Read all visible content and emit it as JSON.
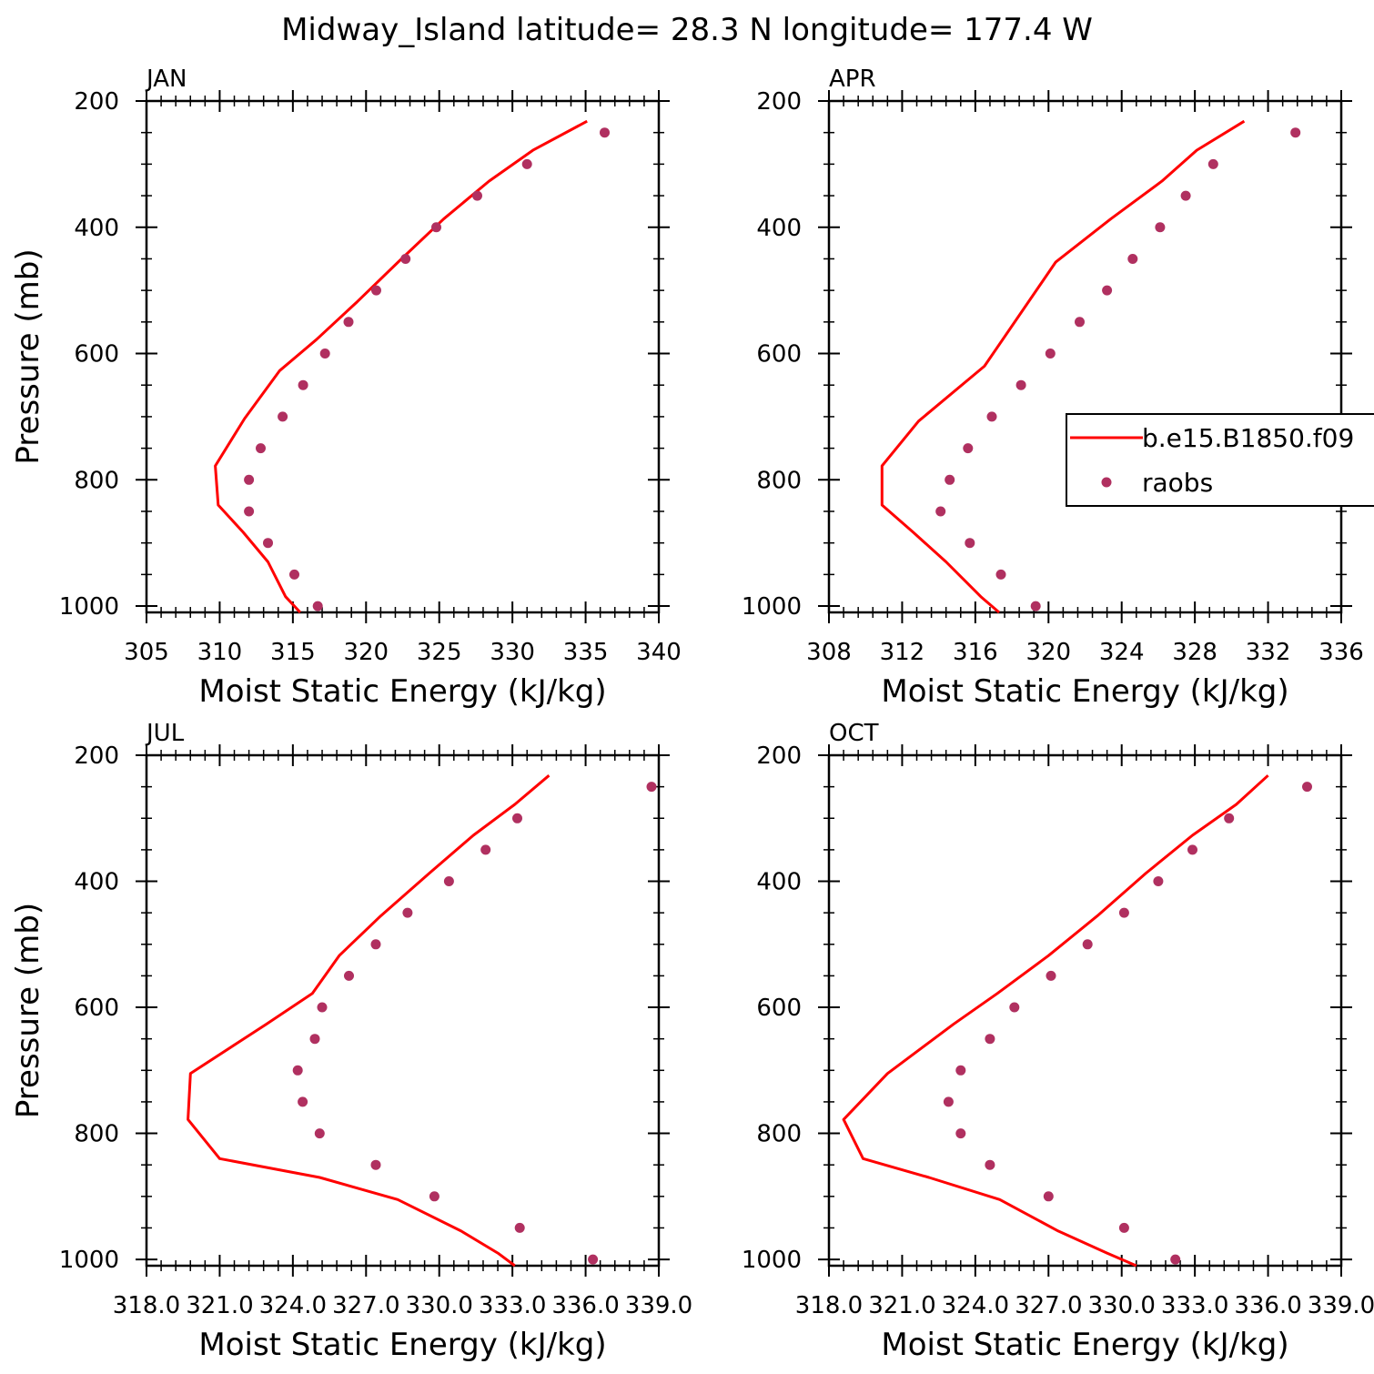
{
  "figure": {
    "title": "Midway_Island  latitude= 28.3 N longitude= 177.4 W"
  },
  "legend": {
    "model_label": "b.e15.B1850.f09",
    "obs_label": "raobs"
  },
  "colors": {
    "model_line": "#ff0000",
    "obs_marker": "#b03060"
  },
  "chart_data": [
    {
      "type": "line",
      "panel": "JAN",
      "xlabel": "Moist Static Energy (kJ/kg)",
      "ylabel": "Pressure (mb)",
      "xlim": [
        305,
        340
      ],
      "ylim": [
        1010,
        200
      ],
      "x_ticks": [
        305,
        310,
        315,
        320,
        325,
        330,
        335,
        340
      ],
      "x_tick_labels": [
        "305",
        "310",
        "315",
        "320",
        "325",
        "330",
        "335",
        "340"
      ],
      "y_ticks": [
        200,
        400,
        600,
        800,
        1000
      ],
      "y_tick_labels": [
        "200",
        "400",
        "600",
        "800",
        "1000"
      ],
      "series": [
        {
          "name": "b.e15.B1850.f09",
          "style": "line",
          "x": [
            335.1,
            331.4,
            328.4,
            325.3,
            322.2,
            319.4,
            316.6,
            314.1,
            311.7,
            309.7,
            309.9,
            311.6,
            313.3,
            314.5,
            315.5
          ],
          "y": [
            232,
            278,
            327,
            387,
            455,
            518,
            578,
            627,
            703,
            778,
            840,
            883,
            930,
            985,
            1010
          ]
        },
        {
          "name": "raobs",
          "style": "markers",
          "x": [
            336.3,
            331.0,
            327.6,
            324.8,
            322.7,
            320.7,
            318.8,
            317.2,
            315.7,
            314.3,
            312.8,
            312.0,
            312.0,
            313.3,
            315.1,
            316.7
          ],
          "y": [
            250,
            300,
            350,
            400,
            450,
            500,
            550,
            600,
            650,
            700,
            750,
            800,
            850,
            900,
            950,
            1000
          ]
        }
      ]
    },
    {
      "type": "line",
      "panel": "APR",
      "xlabel": "Moist Static Energy (kJ/kg)",
      "ylabel": "",
      "xlim": [
        308,
        336
      ],
      "ylim": [
        1010,
        200
      ],
      "x_ticks": [
        308,
        312,
        316,
        320,
        324,
        328,
        332,
        336
      ],
      "x_tick_labels": [
        "308",
        "312",
        "316",
        "320",
        "324",
        "328",
        "332",
        "336"
      ],
      "y_ticks": [
        200,
        400,
        600,
        800,
        1000
      ],
      "y_tick_labels": [
        "200",
        "400",
        "600",
        "800",
        "1000"
      ],
      "series": [
        {
          "name": "b.e15.B1850.f09",
          "style": "line",
          "x": [
            330.7,
            328.1,
            326.2,
            323.4,
            320.4,
            316.5,
            312.9,
            310.9,
            310.9,
            312.6,
            314.4,
            316.3,
            317.3
          ],
          "y": [
            232,
            278,
            327,
            387,
            455,
            620,
            707,
            778,
            840,
            883,
            930,
            985,
            1010
          ]
        },
        {
          "name": "raobs",
          "style": "markers",
          "x": [
            333.5,
            329.0,
            327.5,
            326.1,
            324.6,
            323.2,
            321.7,
            320.1,
            318.5,
            316.9,
            315.6,
            314.6,
            314.1,
            315.7,
            317.4,
            319.3
          ],
          "y": [
            250,
            300,
            350,
            400,
            450,
            500,
            550,
            600,
            650,
            700,
            750,
            800,
            850,
            900,
            950,
            1000
          ]
        }
      ]
    },
    {
      "type": "line",
      "panel": "JUL",
      "xlabel": "Moist Static Energy (kJ/kg)",
      "ylabel": "Pressure (mb)",
      "xlim": [
        318,
        339
      ],
      "ylim": [
        1010,
        200
      ],
      "x_ticks": [
        318,
        321,
        324,
        327,
        330,
        333,
        336,
        339
      ],
      "x_tick_labels": [
        "318.0",
        "321.0",
        "324.0",
        "327.0",
        "330.0",
        "333.0",
        "336.0",
        "339.0"
      ],
      "y_ticks": [
        200,
        400,
        600,
        800,
        1000
      ],
      "y_tick_labels": [
        "200",
        "400",
        "600",
        "800",
        "1000"
      ],
      "series": [
        {
          "name": "b.e15.B1850.f09",
          "style": "line",
          "x": [
            334.5,
            333.1,
            331.4,
            329.6,
            327.6,
            325.9,
            324.8,
            322.9,
            319.8,
            319.7,
            321.0,
            325.1,
            328.3,
            330.9,
            332.4,
            333.1
          ],
          "y": [
            232,
            278,
            327,
            387,
            455,
            518,
            578,
            627,
            705,
            778,
            840,
            870,
            905,
            955,
            990,
            1010
          ]
        },
        {
          "name": "raobs",
          "style": "markers",
          "x": [
            338.7,
            333.2,
            331.9,
            330.4,
            328.7,
            327.4,
            326.3,
            325.2,
            324.9,
            324.2,
            324.4,
            325.1,
            327.4,
            329.8,
            333.3,
            336.3
          ],
          "y": [
            250,
            300,
            350,
            400,
            450,
            500,
            550,
            600,
            650,
            700,
            750,
            800,
            850,
            900,
            950,
            1000
          ]
        }
      ]
    },
    {
      "type": "line",
      "panel": "OCT",
      "xlabel": "Moist Static Energy (kJ/kg)",
      "ylabel": "",
      "xlim": [
        318,
        339
      ],
      "ylim": [
        1010,
        200
      ],
      "x_ticks": [
        318,
        321,
        324,
        327,
        330,
        333,
        336,
        339
      ],
      "x_tick_labels": [
        "318.0",
        "321.0",
        "324.0",
        "327.0",
        "330.0",
        "333.0",
        "336.0",
        "339.0"
      ],
      "y_ticks": [
        200,
        400,
        600,
        800,
        1000
      ],
      "y_tick_labels": [
        "200",
        "400",
        "600",
        "800",
        "1000"
      ],
      "series": [
        {
          "name": "b.e15.B1850.f09",
          "style": "line",
          "x": [
            336.0,
            334.7,
            332.9,
            331.0,
            329.0,
            327.0,
            324.9,
            323.1,
            320.4,
            318.6,
            319.4,
            322.1,
            325.0,
            327.4,
            329.4,
            330.6
          ],
          "y": [
            232,
            278,
            327,
            387,
            455,
            518,
            578,
            627,
            705,
            778,
            840,
            870,
            905,
            955,
            990,
            1010
          ]
        },
        {
          "name": "raobs",
          "style": "markers",
          "x": [
            337.6,
            334.4,
            332.9,
            331.5,
            330.1,
            328.6,
            327.1,
            325.6,
            324.6,
            323.4,
            322.9,
            323.4,
            324.6,
            327.0,
            330.1,
            332.2
          ],
          "y": [
            250,
            300,
            350,
            400,
            450,
            500,
            550,
            600,
            650,
            700,
            750,
            800,
            850,
            900,
            950,
            1000
          ]
        }
      ]
    }
  ]
}
